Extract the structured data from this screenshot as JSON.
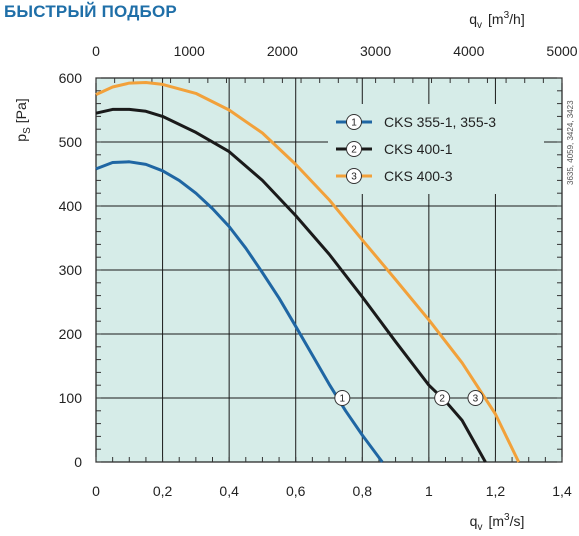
{
  "heading": "БЫСТРЫЙ ПОДБОР",
  "side_code": "3635, 4059, 3424, 3423",
  "colors": {
    "plot_bg": "#d6ece8",
    "grid": "#1a1a1a",
    "heading": "#1f6fa8"
  },
  "chart_data": {
    "type": "line",
    "title": "",
    "xlabel": {
      "main": "q",
      "sub": "v",
      "unit_pre": "[m",
      "unit_sup": "3",
      "unit_post": "/s]"
    },
    "x2label": {
      "main": "q",
      "sub": "v",
      "unit_pre": "[m",
      "unit_sup": "3",
      "unit_post": "/h]"
    },
    "ylabel": {
      "main": "p",
      "sub": "S",
      "unit": "[Pa]"
    },
    "xlim": [
      0,
      1.4
    ],
    "x2lim": [
      0,
      5000
    ],
    "ylim": [
      0,
      600
    ],
    "x_ticks": [
      0,
      0.2,
      0.4,
      0.6,
      0.8,
      1.0,
      1.2,
      1.4
    ],
    "x_tick_labels": [
      "0",
      "0,2",
      "0,4",
      "0,6",
      "0,8",
      "1",
      "1,2",
      "1,4"
    ],
    "x2_ticks": [
      0,
      1000,
      2000,
      3000,
      4000,
      5000
    ],
    "x2_tick_labels": [
      "0",
      "1000",
      "2000",
      "3000",
      "4000",
      "5000"
    ],
    "y_ticks": [
      0,
      100,
      200,
      300,
      400,
      500,
      600
    ],
    "y_tick_labels": [
      "0",
      "100",
      "200",
      "300",
      "400",
      "500",
      "600"
    ],
    "grid": true,
    "legend_position": "top-right",
    "series": [
      {
        "name": "CKS 355-1, 355-3",
        "marker": "1",
        "color": "#1f66a3",
        "x": [
          0,
          0.05,
          0.1,
          0.15,
          0.2,
          0.25,
          0.3,
          0.35,
          0.4,
          0.45,
          0.5,
          0.55,
          0.6,
          0.65,
          0.7,
          0.75,
          0.8,
          0.86
        ],
        "y": [
          458,
          468,
          469,
          465,
          455,
          440,
          420,
          396,
          368,
          334,
          296,
          256,
          212,
          167,
          122,
          80,
          42,
          0
        ],
        "marker_point": [
          0.74,
          100
        ]
      },
      {
        "name": "CKS 400-1",
        "marker": "2",
        "color": "#1a1a1a",
        "x": [
          0,
          0.05,
          0.1,
          0.15,
          0.2,
          0.3,
          0.4,
          0.5,
          0.6,
          0.7,
          0.8,
          0.9,
          1.0,
          1.05,
          1.1,
          1.17
        ],
        "y": [
          545,
          551,
          551,
          548,
          540,
          515,
          485,
          440,
          385,
          325,
          258,
          188,
          120,
          95,
          65,
          0
        ],
        "marker_point": [
          1.04,
          100
        ]
      },
      {
        "name": "CKS 400-3",
        "marker": "3",
        "color": "#f2a13a",
        "x": [
          0,
          0.05,
          0.1,
          0.15,
          0.2,
          0.3,
          0.4,
          0.5,
          0.6,
          0.7,
          0.8,
          0.9,
          1.0,
          1.1,
          1.2,
          1.27
        ],
        "y": [
          574,
          586,
          592,
          593,
          590,
          576,
          550,
          514,
          465,
          410,
          347,
          285,
          222,
          155,
          75,
          0
        ],
        "marker_point": [
          1.14,
          100
        ]
      }
    ]
  }
}
